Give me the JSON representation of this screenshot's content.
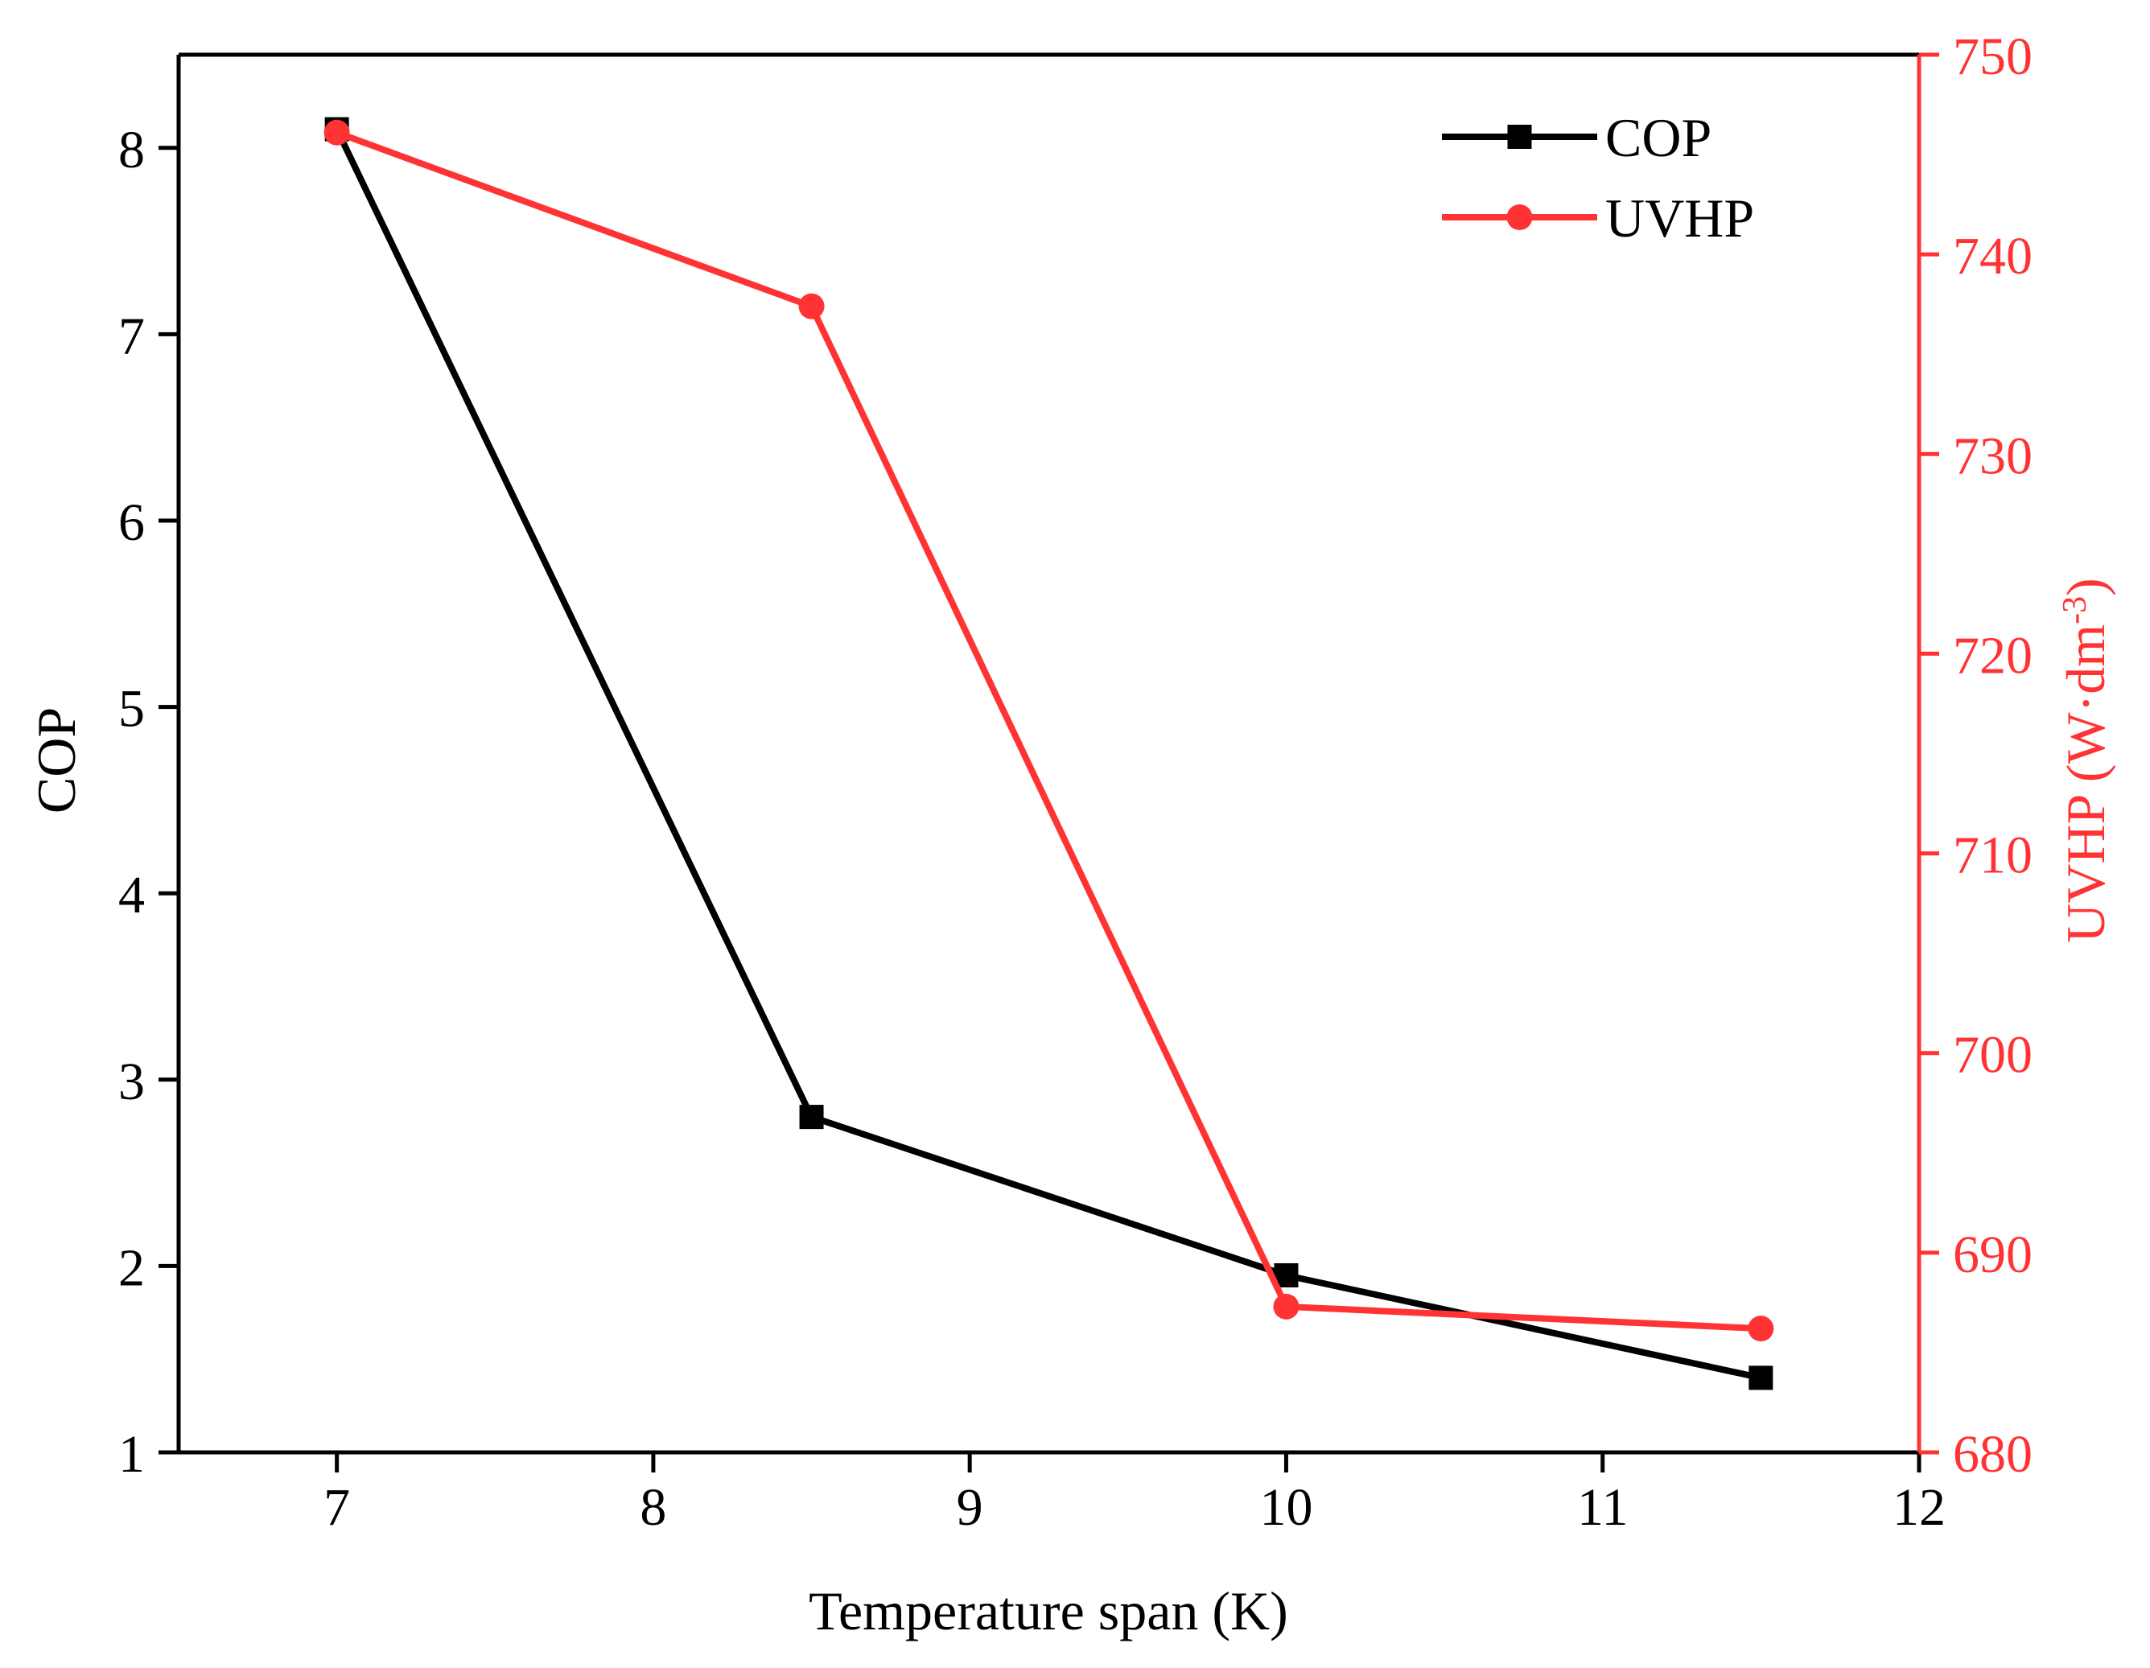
{
  "chart_data": {
    "type": "line",
    "title": "",
    "xlabel": "Temperature span (K)",
    "ylabel_left": "COP",
    "ylabel_right_main": "UVHP (W·dm",
    "ylabel_right_sup": "-3",
    "ylabel_right_close": ")",
    "xlim": [
      6.5,
      12
    ],
    "xticks": [
      7,
      8,
      9,
      10,
      11,
      12
    ],
    "ylim_left": [
      1,
      8.5
    ],
    "yticks_left": [
      1,
      2,
      3,
      4,
      5,
      6,
      7,
      8
    ],
    "ylim_right": [
      680,
      750
    ],
    "yticks_right": [
      680,
      690,
      700,
      710,
      720,
      730,
      740,
      750
    ],
    "grid": false,
    "legend_position": "top-right",
    "x": [
      7,
      8.5,
      10,
      11.5
    ],
    "series": [
      {
        "name": "COP",
        "axis": "left",
        "color": "#000000",
        "marker": "square",
        "values": [
          8.1,
          2.8,
          1.95,
          1.4
        ]
      },
      {
        "name": "UVHP",
        "axis": "right",
        "color": "#ff3333",
        "marker": "circle",
        "values": [
          746.1,
          737.4,
          687.3,
          686.2
        ]
      }
    ]
  }
}
